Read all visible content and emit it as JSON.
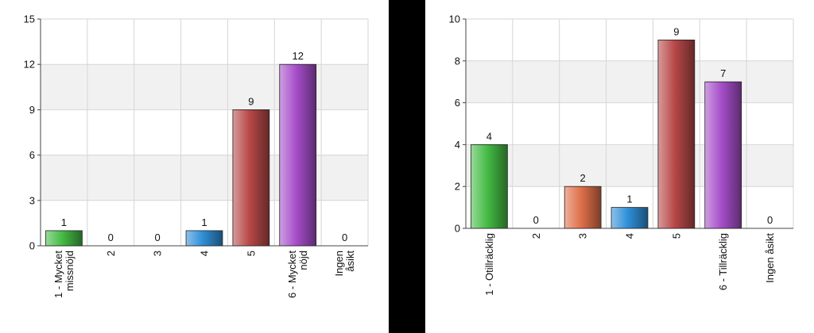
{
  "chart_data": [
    {
      "type": "bar",
      "categories": [
        [
          "1 - Mycket",
          "missnöjd"
        ],
        [
          "2"
        ],
        [
          "3"
        ],
        [
          "4"
        ],
        [
          "5"
        ],
        [
          "6 - Mycket",
          "nöjd"
        ],
        [
          "Ingen",
          "åsikt"
        ]
      ],
      "values": [
        1,
        0,
        0,
        1,
        9,
        12,
        0
      ],
      "data_labels": [
        "1",
        "0",
        "0",
        "1",
        "9",
        "12",
        "0"
      ],
      "ylim": [
        0,
        15
      ],
      "yticks": [
        0,
        3,
        6,
        9,
        12,
        15
      ],
      "ytick_labels": [
        "0",
        "3",
        "6",
        "9",
        "12",
        "15"
      ],
      "grid": true,
      "legend": "none",
      "bar_colors": [
        "#44bb44",
        null,
        null,
        "#2f8fd8",
        "#b84848",
        "#a64ec9",
        null
      ],
      "title": "",
      "xlabel": "",
      "ylabel": ""
    },
    {
      "type": "bar",
      "categories": [
        [
          "1 - Otillräcklig"
        ],
        [
          "2"
        ],
        [
          "3"
        ],
        [
          "4"
        ],
        [
          "5"
        ],
        [
          "6 - Tillräcklig"
        ],
        [
          "Ingen åsikt"
        ]
      ],
      "values": [
        4,
        0,
        2,
        1,
        9,
        7,
        0
      ],
      "data_labels": [
        "4",
        "0",
        "2",
        "1",
        "9",
        "7",
        "0"
      ],
      "ylim": [
        0,
        10
      ],
      "yticks": [
        0,
        2,
        4,
        6,
        8,
        10
      ],
      "ytick_labels": [
        "0",
        "2",
        "4",
        "6",
        "8",
        "10"
      ],
      "grid": true,
      "legend": "none",
      "bar_colors": [
        "#44bb44",
        null,
        "#e0704a",
        "#2f8fd8",
        "#b84848",
        "#a64ec9",
        null
      ],
      "title": "",
      "xlabel": "",
      "ylabel": ""
    }
  ]
}
